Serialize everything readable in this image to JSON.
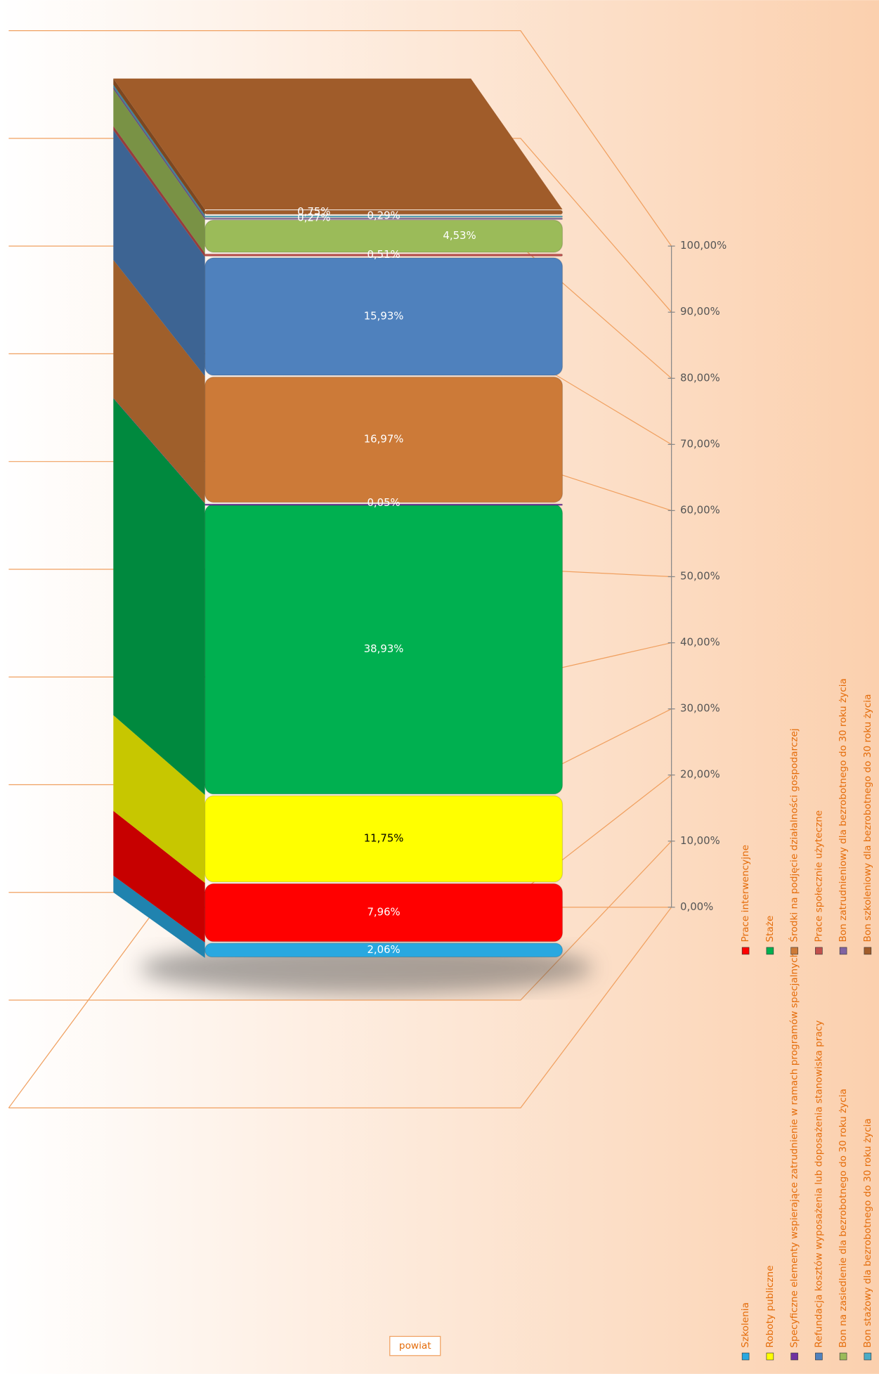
{
  "chart_data": {
    "type": "bar",
    "stacked": true,
    "categories": [
      "powiat"
    ],
    "series": [
      {
        "name": "Szkolenia",
        "color": "#29a8e0",
        "values": [
          2.06
        ],
        "value_labels": [
          "2,06%"
        ]
      },
      {
        "name": "Prace interwencyjne",
        "color": "#ff0000",
        "values": [
          7.96
        ],
        "value_labels": [
          "7,96%"
        ]
      },
      {
        "name": "Roboty publiczne",
        "color": "#ffff00",
        "values": [
          11.75
        ],
        "value_labels": [
          "11,75%"
        ]
      },
      {
        "name": "Staże",
        "color": "#00b050",
        "values": [
          38.93
        ],
        "value_labels": [
          "38,93%"
        ]
      },
      {
        "name": "Specyficzne elementy wspierające zatrudnienie w ramach programów specjalnych",
        "color": "#7030a0",
        "values": [
          0.05
        ],
        "value_labels": [
          "0,05%"
        ]
      },
      {
        "name": "Środki na podjęcie działalności gospodarczej",
        "color": "#cc7a38",
        "values": [
          16.97
        ],
        "value_labels": [
          "16,97%"
        ]
      },
      {
        "name": "Refundacja kosztów wyposażenia lub doposażenia stanowiska pracy",
        "color": "#4f81bd",
        "values": [
          15.93
        ],
        "value_labels": [
          "15,93%"
        ]
      },
      {
        "name": "Prace społecznie użyteczne",
        "color": "#c0504d",
        "values": [
          0.51
        ],
        "value_labels": [
          "0,51%"
        ]
      },
      {
        "name": "Bon na zasiedlenie dla bezrobotnego do 30 roku życia",
        "color": "#9bbb59",
        "values": [
          4.53
        ],
        "value_labels": [
          "4,53%"
        ]
      },
      {
        "name": "Bon zatrudnieniowy dla bezrobotnego do 30 roku życia",
        "color": "#8064a2",
        "values": [
          0.27
        ],
        "value_labels": [
          "0,27%"
        ]
      },
      {
        "name": "Bon stażowy dla bezrobotnego do 30 roku życia",
        "color": "#4bacc6",
        "values": [
          0.29
        ],
        "value_labels": [
          "0,29%"
        ]
      },
      {
        "name": "Bon szkoleniowy dla bezrobotnego do 30 roku życia",
        "color": "#a05c2a",
        "values": [
          0.75
        ],
        "value_labels": [
          "0,75%"
        ]
      }
    ],
    "ylim": [
      0,
      100
    ],
    "yticks": [
      {
        "value": 0,
        "label": "0,00%"
      },
      {
        "value": 10,
        "label": "10,00%"
      },
      {
        "value": 20,
        "label": "20,00%"
      },
      {
        "value": 30,
        "label": "30,00%"
      },
      {
        "value": 40,
        "label": "40,00%"
      },
      {
        "value": 50,
        "label": "50,00%"
      },
      {
        "value": 60,
        "label": "60,00%"
      },
      {
        "value": 70,
        "label": "70,00%"
      },
      {
        "value": 80,
        "label": "80,00%"
      },
      {
        "value": 90,
        "label": "90,00%"
      },
      {
        "value": 100,
        "label": "100,00%"
      }
    ],
    "grid": true,
    "legend": "right"
  }
}
